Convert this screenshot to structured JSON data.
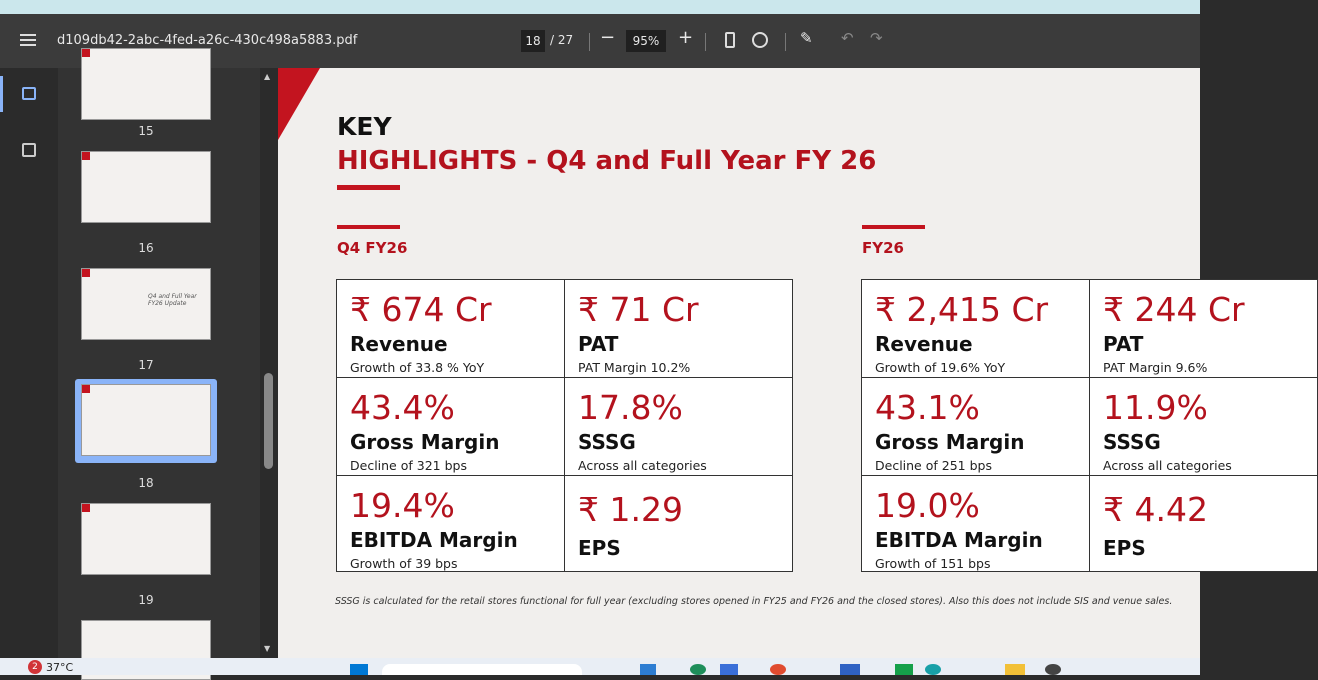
{
  "toolbar": {
    "filename": "d109db42-2abc-4fed-a26c-430c498a5883.pdf",
    "page": "18",
    "page_total": "/ 27",
    "zoom": "95%"
  },
  "thumbnails": [
    {
      "number": "15"
    },
    {
      "number": "16"
    },
    {
      "number": "17",
      "caption": "Q4 and Full Year FY26 Update"
    },
    {
      "number": "18"
    },
    {
      "number": "19"
    }
  ],
  "slide": {
    "title": "KEY",
    "subtitle": "HIGHLIGHTS - Q4 and Full Year FY 26",
    "sections": [
      {
        "label": "Q4 FY26",
        "cells": [
          {
            "value": "₹ 674 Cr",
            "title": "Revenue",
            "note": "Growth of 33.8 % YoY"
          },
          {
            "value": "₹ 71 Cr",
            "title": "PAT",
            "note": "PAT Margin 10.2%"
          },
          {
            "value": "43.4%",
            "title": "Gross Margin",
            "note": "Decline of 321 bps"
          },
          {
            "value": "17.8%",
            "title": "SSSG",
            "note": "Across all categories"
          },
          {
            "value": "19.4%",
            "title": "EBITDA Margin",
            "note": "Growth of 39 bps"
          },
          {
            "value": "₹ 1.29",
            "title": "EPS"
          }
        ]
      },
      {
        "label": "FY26",
        "cells": [
          {
            "value": "₹ 2,415 Cr",
            "title": "Revenue",
            "note": "Growth of 19.6% YoY"
          },
          {
            "value": "₹ 244 Cr",
            "title": "PAT",
            "note": "PAT Margin 9.6%"
          },
          {
            "value": "43.1%",
            "title": "Gross Margin",
            "note": "Decline of 251 bps"
          },
          {
            "value": "11.9%",
            "title": "SSSG",
            "note": "Across all categories"
          },
          {
            "value": "19.0%",
            "title": "EBITDA Margin",
            "note": "Growth of 151 bps"
          },
          {
            "value": "₹ 4.42",
            "title": "EPS"
          }
        ]
      }
    ],
    "footnote": "SSSG is calculated for the retail stores functional for full year (excluding stores opened in FY25 and FY26 and the closed stores). Also this does not include SIS and venue sales."
  },
  "taskbar": {
    "notifications": "2",
    "temperature": "37°C"
  }
}
